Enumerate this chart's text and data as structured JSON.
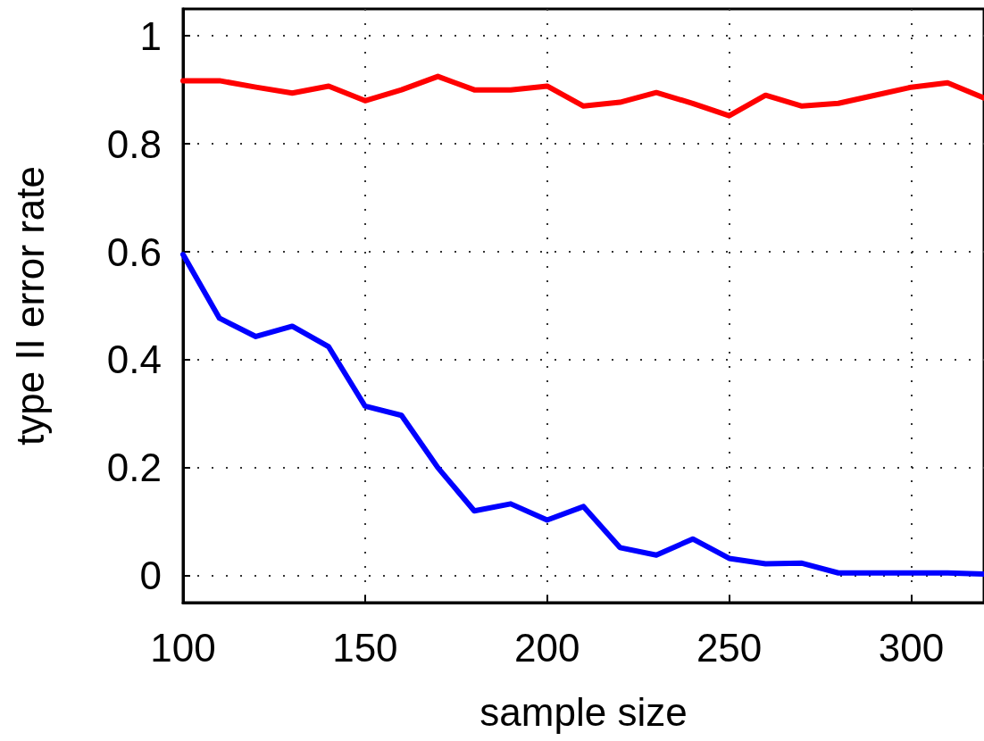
{
  "chart_data": {
    "type": "line",
    "xlabel": "sample size",
    "ylabel": "type II error rate",
    "x": [
      100,
      110,
      120,
      130,
      140,
      150,
      160,
      170,
      180,
      190,
      200,
      210,
      220,
      230,
      240,
      250,
      260,
      270,
      280,
      290,
      300,
      310,
      320
    ],
    "series": [
      {
        "color": "#ff0000",
        "values": [
          0.917,
          0.917,
          0.905,
          0.894,
          0.907,
          0.88,
          0.9,
          0.925,
          0.9,
          0.9,
          0.907,
          0.87,
          0.877,
          0.895,
          0.875,
          0.852,
          0.89,
          0.87,
          0.875,
          0.89,
          0.905,
          0.913,
          0.885
        ]
      },
      {
        "color": "#0000ff",
        "values": [
          0.595,
          0.477,
          0.443,
          0.462,
          0.424,
          0.314,
          0.297,
          0.2,
          0.12,
          0.133,
          0.103,
          0.128,
          0.052,
          0.038,
          0.068,
          0.032,
          0.022,
          0.023,
          0.005,
          0.005,
          0.005,
          0.005,
          0.003
        ]
      }
    ],
    "xlim": [
      100,
      320
    ],
    "xticks": [
      100,
      150,
      200,
      250,
      300
    ],
    "ylim": [
      -0.05,
      1.05
    ],
    "yticks": [
      0,
      0.2,
      0.4,
      0.6,
      0.8,
      1
    ],
    "grid": true,
    "marker": "none",
    "line_style": "solid"
  }
}
